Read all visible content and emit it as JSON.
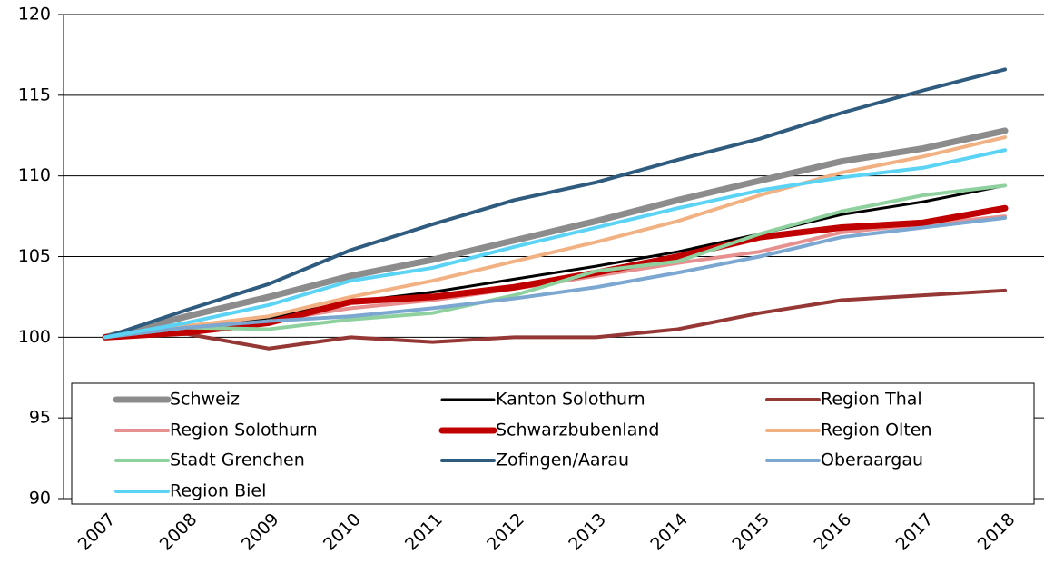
{
  "chart_data": {
    "type": "line",
    "categories": [
      "2007",
      "2008",
      "2009",
      "2010",
      "2011",
      "2012",
      "2013",
      "2014",
      "2015",
      "2016",
      "2017",
      "2018"
    ],
    "ylim": [
      90,
      120
    ],
    "yticks": [
      90,
      95,
      100,
      105,
      110,
      115,
      120
    ],
    "grid": true,
    "series": [
      {
        "name": "Schweiz",
        "color": "#8c8c8c",
        "values": [
          100,
          101.3,
          102.5,
          103.8,
          104.8,
          106.0,
          107.2,
          108.5,
          109.7,
          110.9,
          111.7,
          112.8
        ]
      },
      {
        "name": "Kanton Solothurn",
        "color": "#000000",
        "values": [
          100,
          100.5,
          101.2,
          102.2,
          102.8,
          103.6,
          104.4,
          105.3,
          106.4,
          107.6,
          108.4,
          109.4
        ]
      },
      {
        "name": "Region Thal",
        "color": "#953735",
        "values": [
          100,
          100.2,
          99.3,
          100.0,
          99.7,
          100.0,
          100.0,
          100.5,
          101.5,
          102.3,
          102.6,
          102.9
        ]
      },
      {
        "name": "Region Solothurn",
        "color": "#e6908f",
        "values": [
          100,
          100.3,
          101.0,
          101.8,
          102.3,
          103.0,
          103.8,
          104.6,
          105.3,
          106.5,
          107.0,
          107.5
        ]
      },
      {
        "name": "Schwarzbubenland",
        "color": "#c00000",
        "values": [
          100,
          100.3,
          100.9,
          102.2,
          102.5,
          103.1,
          104.0,
          105.0,
          106.2,
          106.8,
          107.1,
          108.0
        ]
      },
      {
        "name": "Region Olten",
        "color": "#f2b183",
        "values": [
          100,
          100.7,
          101.3,
          102.5,
          103.5,
          104.7,
          105.9,
          107.2,
          108.8,
          110.2,
          111.2,
          112.4
        ]
      },
      {
        "name": "Stadt Grenchen",
        "color": "#8fd19e",
        "values": [
          100,
          100.6,
          100.5,
          101.1,
          101.5,
          102.6,
          104.1,
          104.7,
          106.4,
          107.8,
          108.8,
          109.4
        ]
      },
      {
        "name": "Zofingen/Aarau",
        "color": "#2e5b7e",
        "values": [
          100,
          101.7,
          103.3,
          105.4,
          107.0,
          108.5,
          109.6,
          111.0,
          112.3,
          113.9,
          115.3,
          116.6
        ]
      },
      {
        "name": "Oberaargau",
        "color": "#7ba7d1",
        "values": [
          100,
          100.6,
          101.0,
          101.3,
          101.8,
          102.4,
          103.1,
          104.0,
          105.0,
          106.2,
          106.8,
          107.4
        ]
      },
      {
        "name": "Region Biel",
        "color": "#5bd3f5",
        "values": [
          100,
          100.9,
          102.0,
          103.5,
          104.3,
          105.6,
          106.8,
          108.0,
          109.1,
          109.9,
          110.5,
          111.6
        ]
      }
    ]
  }
}
